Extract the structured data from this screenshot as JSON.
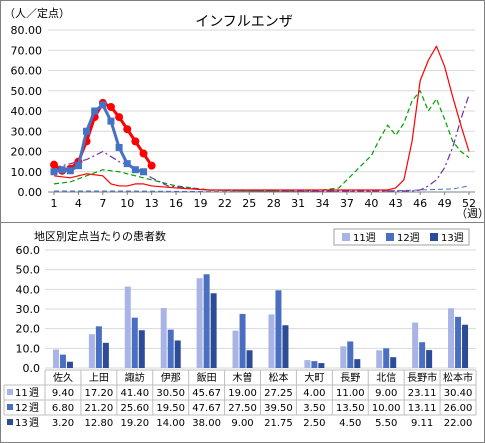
{
  "chart_data": [
    {
      "type": "line",
      "title": "インフルエンザ",
      "ylabel": "（人／定点）",
      "xlabel": "（週）",
      "ylim": [
        0,
        80
      ],
      "yticks": [
        "0.00",
        "10.00",
        "20.00",
        "30.00",
        "40.00",
        "50.00",
        "60.00",
        "70.00",
        "80.00"
      ],
      "xticks": [
        "1",
        "4",
        "7",
        "10",
        "13",
        "16",
        "19",
        "22",
        "25",
        "28",
        "31",
        "34",
        "37",
        "40",
        "43",
        "46",
        "49",
        "52"
      ],
      "grid": true,
      "legend": "none",
      "series": [
        {
          "color": "#ff0000",
          "style": "solid-marker",
          "marker": "circle",
          "width": 3,
          "x": [
            1,
            2,
            3,
            4,
            5,
            6,
            7,
            8,
            9,
            10,
            11,
            12,
            13
          ],
          "y": [
            13.5,
            10.5,
            11.5,
            15,
            25,
            37,
            44,
            42,
            37,
            31,
            25,
            19,
            13
          ]
        },
        {
          "color": "#4472c4",
          "style": "solid-marker",
          "marker": "square",
          "width": 3,
          "x": [
            1,
            2,
            3,
            4,
            5,
            6,
            7,
            8,
            9,
            10,
            11,
            12,
            13
          ],
          "y": [
            10,
            11,
            10.5,
            13,
            30,
            40,
            43,
            35,
            22,
            14,
            11,
            10,
            null
          ]
        },
        {
          "color": "#ff0000",
          "style": "solid",
          "width": 1.2,
          "x": [
            1,
            3,
            5,
            7,
            8,
            9,
            10,
            11,
            12,
            13,
            16,
            20,
            25,
            30,
            35,
            38,
            40,
            42,
            43,
            44,
            45,
            46,
            47,
            48,
            49,
            50,
            51,
            52
          ],
          "y": [
            8,
            7,
            9,
            8,
            4,
            3,
            3,
            4,
            4,
            3,
            2,
            1,
            1,
            1,
            1,
            1,
            1,
            1,
            2,
            6,
            25,
            55,
            65,
            72,
            62,
            47,
            33,
            20
          ]
        },
        {
          "color": "#00a000",
          "style": "dashed",
          "width": 1.2,
          "x": [
            1,
            3,
            5,
            7,
            9,
            11,
            13,
            16,
            20,
            25,
            30,
            34,
            36,
            37,
            38,
            40,
            41,
            42,
            43,
            44,
            45,
            46,
            47,
            48,
            49,
            50,
            51,
            52
          ],
          "y": [
            4,
            5,
            8,
            11,
            10,
            8,
            6,
            3,
            1,
            0.5,
            0.5,
            1,
            2,
            6,
            10,
            18,
            26,
            33,
            28,
            34,
            45,
            50,
            40,
            46,
            36,
            25,
            20,
            17
          ]
        },
        {
          "color": "#7030a0",
          "style": "dashdot",
          "width": 1.2,
          "x": [
            1,
            3,
            5,
            7,
            9,
            11,
            13,
            15,
            20,
            30,
            45,
            46,
            47,
            48,
            49,
            50,
            51,
            52
          ],
          "y": [
            12,
            14,
            16,
            20,
            15,
            12,
            7,
            3,
            1,
            0.5,
            0.5,
            1,
            3,
            6,
            12,
            22,
            36,
            48
          ]
        },
        {
          "color": "#4472c4",
          "style": "dashed",
          "width": 1,
          "x": [
            1,
            10,
            20,
            30,
            40,
            50,
            52
          ],
          "y": [
            0.5,
            0.5,
            0.2,
            0.2,
            0.3,
            1.5,
            3
          ]
        }
      ]
    },
    {
      "type": "bar",
      "title": "地区別定点当たりの患者数",
      "ylim": [
        0,
        60
      ],
      "yticks": [
        "0.0",
        "10.0",
        "20.0",
        "30.0",
        "40.0",
        "50.0",
        "60.0"
      ],
      "legend": "top-right",
      "categories": [
        "佐久",
        "上田",
        "諏訪",
        "伊那",
        "飯田",
        "木曽",
        "松本",
        "大町",
        "長野",
        "北信",
        "長野市",
        "松本市"
      ],
      "series": [
        {
          "name": "11週",
          "color": "#a9b4e6",
          "values": [
            9.4,
            17.2,
            41.4,
            30.5,
            45.67,
            19.0,
            27.25,
            4.0,
            11.0,
            9.0,
            23.11,
            30.4
          ],
          "labels": [
            "9.40",
            "17.20",
            "41.40",
            "30.50",
            "45.67",
            "19.00",
            "27.25",
            "4.00",
            "11.00",
            "9.00",
            "23.11",
            "30.40"
          ]
        },
        {
          "name": "12週",
          "color": "#4a6fc1",
          "values": [
            6.8,
            21.2,
            25.6,
            19.5,
            47.67,
            27.5,
            39.5,
            3.5,
            13.5,
            10.0,
            13.11,
            26.0
          ],
          "labels": [
            "6.80",
            "21.20",
            "25.60",
            "19.50",
            "47.67",
            "27.50",
            "39.50",
            "3.50",
            "13.50",
            "10.00",
            "13.11",
            "26.00"
          ]
        },
        {
          "name": "13週",
          "color": "#2c4c96",
          "values": [
            3.2,
            12.8,
            19.2,
            14.0,
            38.0,
            9.0,
            21.75,
            2.5,
            4.5,
            5.5,
            9.11,
            22.0
          ],
          "labels": [
            "3.20",
            "12.80",
            "19.20",
            "14.00",
            "38.00",
            "9.00",
            "21.75",
            "2.50",
            "4.50",
            "5.50",
            "9.11",
            "22.00"
          ]
        }
      ]
    }
  ]
}
